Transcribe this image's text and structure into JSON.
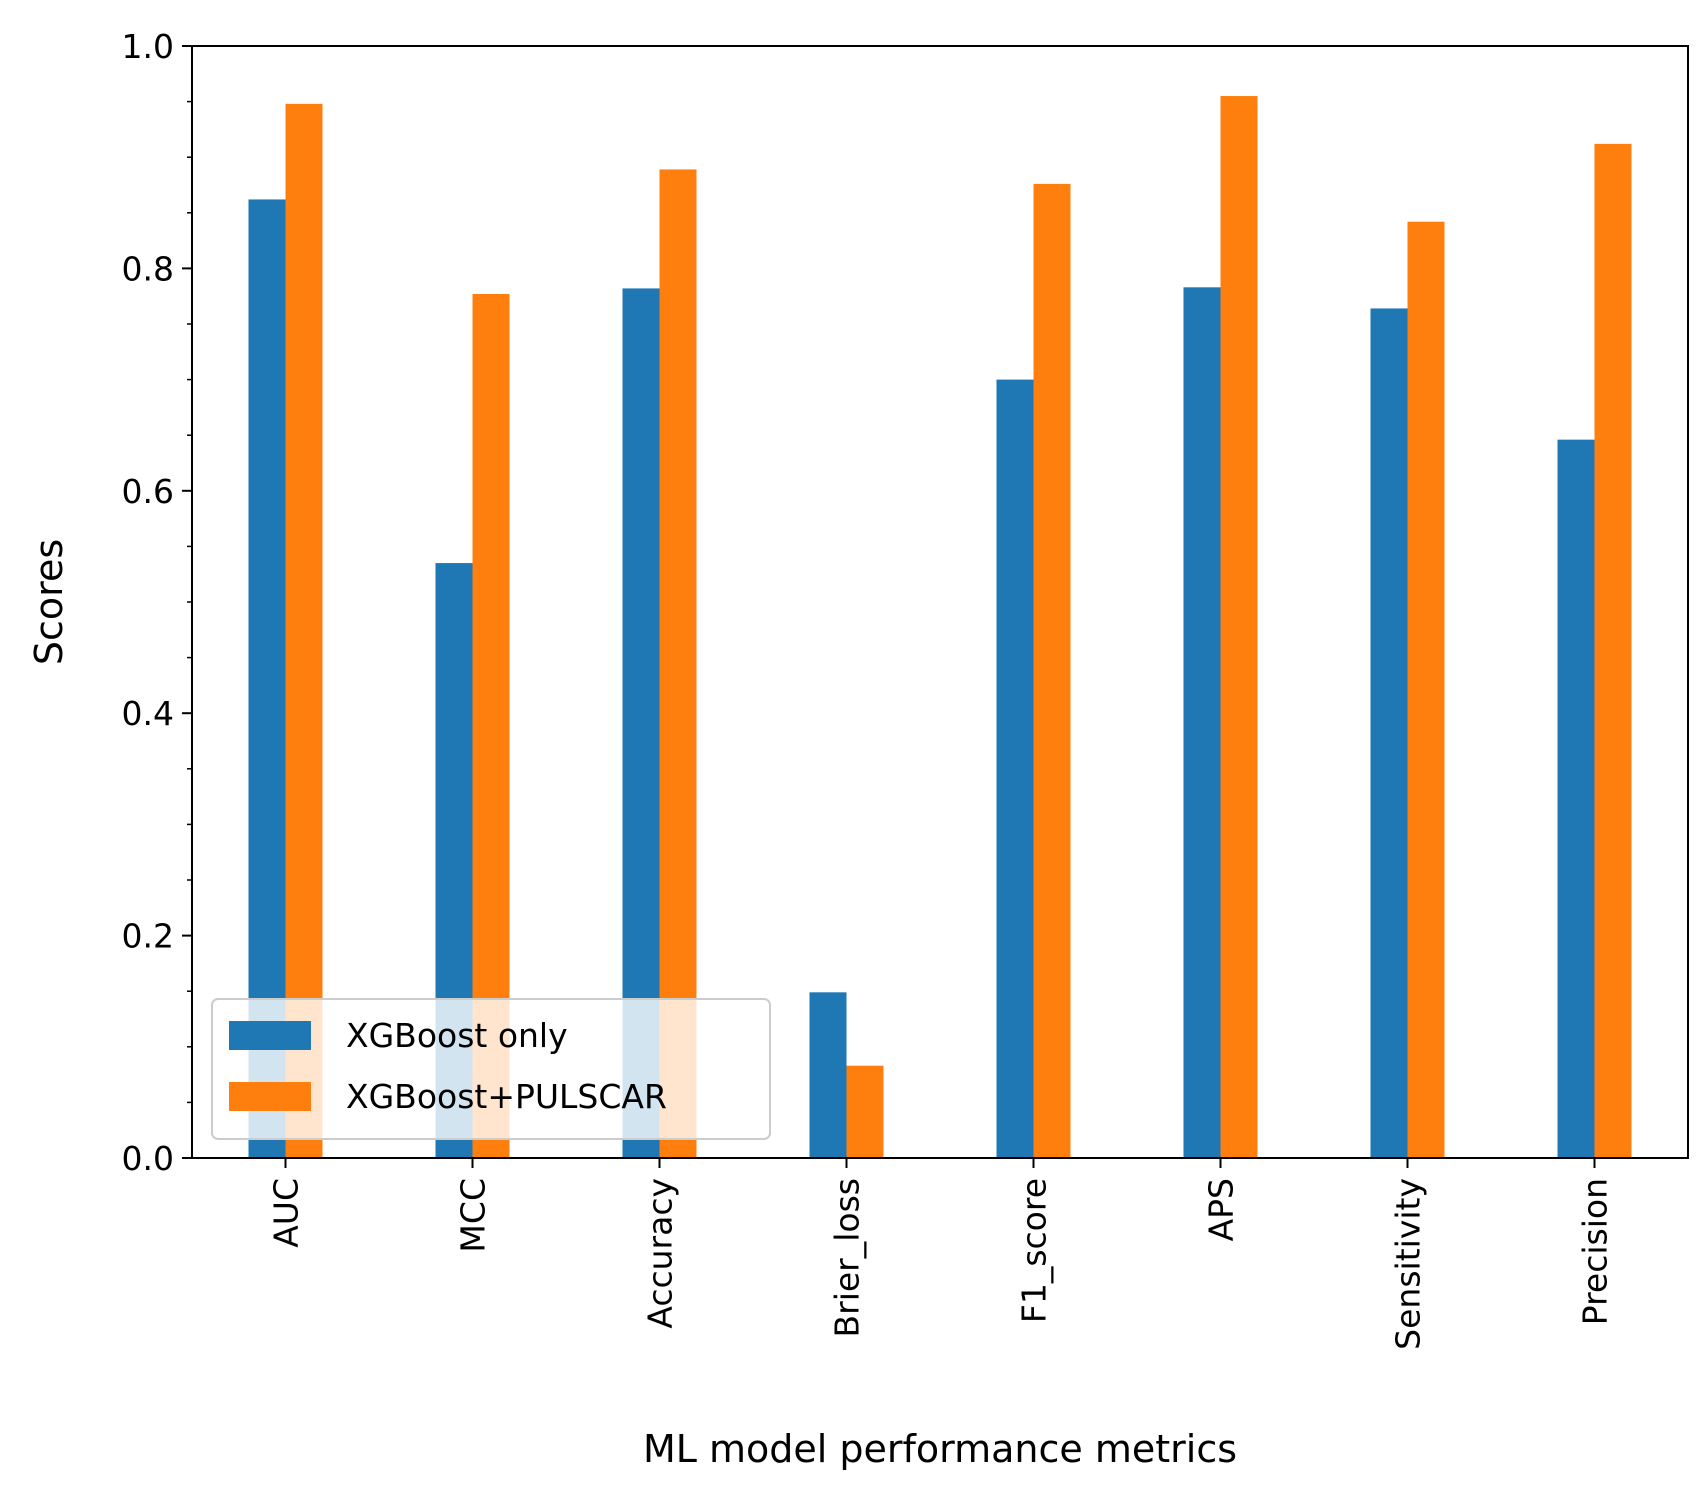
{
  "chart_data": {
    "type": "bar",
    "categories": [
      "AUC",
      "MCC",
      "Accuracy",
      "Brier_loss",
      "F1_score",
      "APS",
      "Sensitivity",
      "Precision"
    ],
    "series": [
      {
        "name": "XGBoost only",
        "values": [
          0.862,
          0.535,
          0.782,
          0.149,
          0.7,
          0.783,
          0.764,
          0.646
        ]
      },
      {
        "name": "XGBoost+PULSCAR",
        "values": [
          0.948,
          0.777,
          0.889,
          0.083,
          0.876,
          0.955,
          0.842,
          0.912
        ]
      }
    ],
    "title": "",
    "xlabel": "ML model performance metrics",
    "ylabel": "Scores",
    "ylim": [
      0,
      1.0
    ],
    "yticks": [
      "0.0",
      "0.2",
      "0.4",
      "0.6",
      "0.8",
      "1.0"
    ],
    "grid": false,
    "legend_position": "lower-left",
    "colors": {
      "series_0": "#1f77b4",
      "series_1": "#ff7f0e"
    }
  }
}
